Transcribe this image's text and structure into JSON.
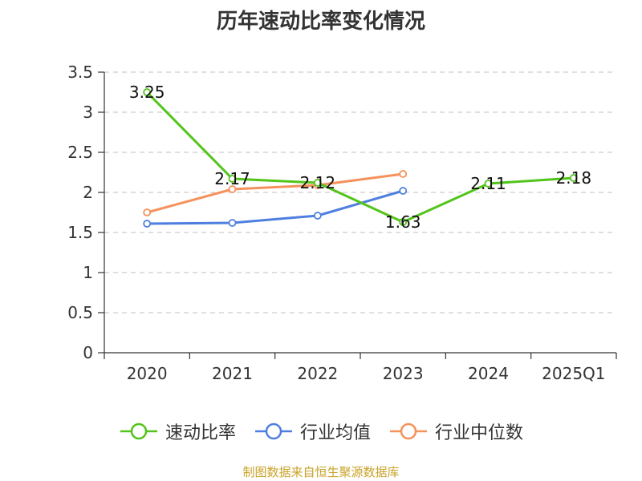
{
  "chart_data": {
    "type": "line",
    "title": "历年速动比率变化情况",
    "categories": [
      "2020",
      "2021",
      "2022",
      "2023",
      "2024",
      "2025Q1"
    ],
    "ylim": [
      0,
      3.5
    ],
    "yticks": [
      "0",
      "0.5",
      "1",
      "1.5",
      "2",
      "2.5",
      "3",
      "3.5"
    ],
    "grid": true,
    "legend_position": "bottom",
    "series": [
      {
        "name": "速动比率",
        "color": "#52c41a",
        "values": [
          3.25,
          2.17,
          2.12,
          1.63,
          2.11,
          2.18
        ],
        "labels": [
          "3.25",
          "2.17",
          "2.12",
          "1.63",
          "2.11",
          "2.18"
        ]
      },
      {
        "name": "行业均值",
        "color": "#4e7fe0",
        "values": [
          1.61,
          1.62,
          1.71,
          2.02,
          null,
          null
        ]
      },
      {
        "name": "行业中位数",
        "color": "#f5915a",
        "values": [
          1.75,
          2.04,
          2.09,
          2.23,
          null,
          null
        ]
      }
    ]
  },
  "source": "制图数据来自恒生聚源数据库"
}
